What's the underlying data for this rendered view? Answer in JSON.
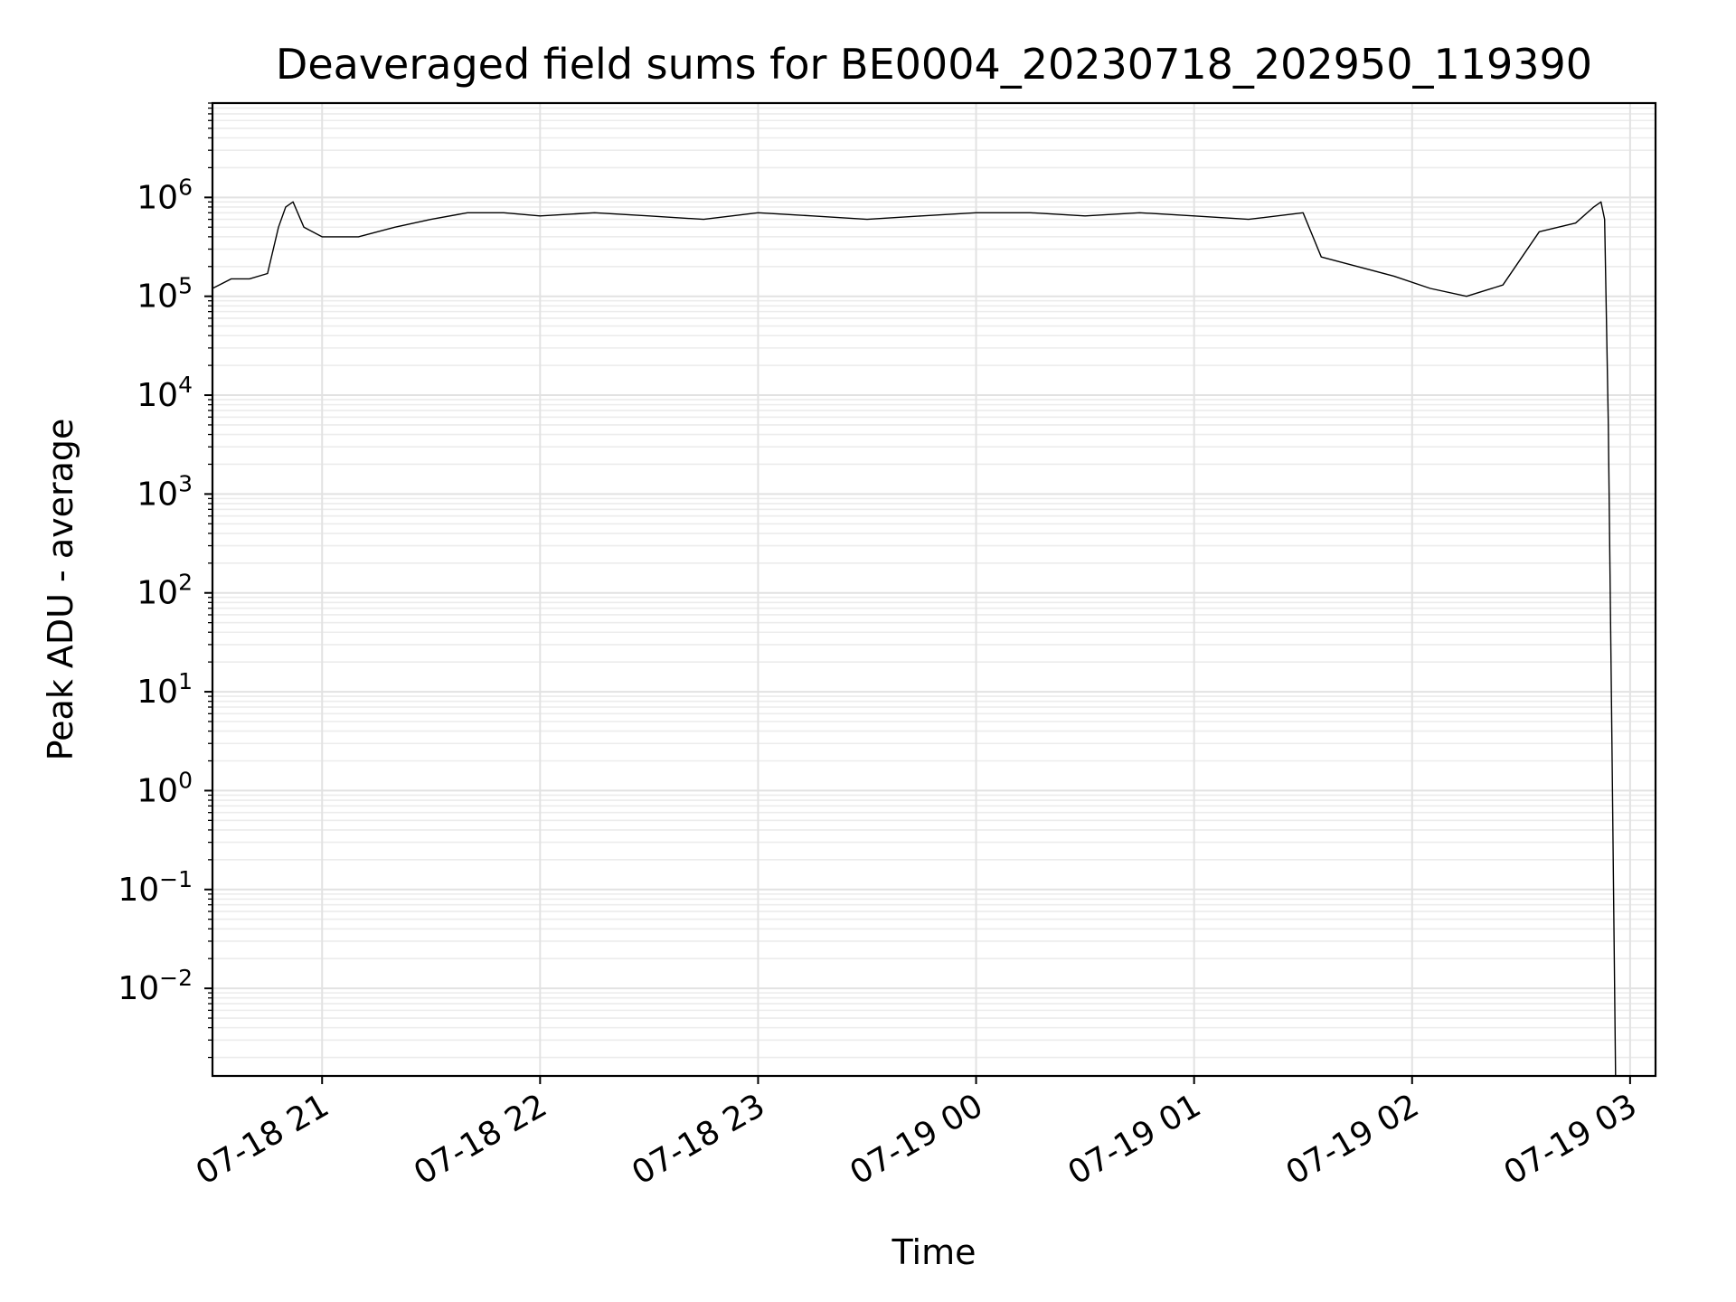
{
  "chart_data": {
    "type": "line",
    "title": "Deaveraged field sums for BE0004_20230718_202950_119390",
    "xlabel": "Time",
    "ylabel": "Peak ADU - average",
    "yscale": "log",
    "grid": true,
    "x_ticks": [
      "07-18 21",
      "07-18 22",
      "07-18 23",
      "07-19 00",
      "07-19 01",
      "07-19 02",
      "07-19 03"
    ],
    "y_ticks": [
      {
        "base": "10",
        "exp": "6",
        "value": 1000000
      },
      {
        "base": "10",
        "exp": "5",
        "value": 100000
      },
      {
        "base": "10",
        "exp": "4",
        "value": 10000
      },
      {
        "base": "10",
        "exp": "3",
        "value": 1000
      },
      {
        "base": "10",
        "exp": "2",
        "value": 100
      },
      {
        "base": "10",
        "exp": "1",
        "value": 10
      },
      {
        "base": "10",
        "exp": "0",
        "value": 1
      },
      {
        "base": "10",
        "exp": "−1",
        "value": 0.1
      },
      {
        "base": "10",
        "exp": "−2",
        "value": 0.01
      }
    ],
    "xlim": [
      "2023-07-18 20:29:50",
      "2023-07-19 03:07:00"
    ],
    "ylim": [
      0.0013,
      9000000
    ],
    "series": [
      {
        "color": "#000000",
        "x": [
          "2023-07-18 20:29:50",
          "2023-07-18 20:35",
          "2023-07-18 20:40",
          "2023-07-18 20:45",
          "2023-07-18 20:48",
          "2023-07-18 20:50",
          "2023-07-18 20:52",
          "2023-07-18 20:55",
          "2023-07-18 21:00",
          "2023-07-18 21:10",
          "2023-07-18 21:20",
          "2023-07-18 21:30",
          "2023-07-18 21:40",
          "2023-07-18 21:50",
          "2023-07-18 22:00",
          "2023-07-18 22:15",
          "2023-07-18 22:30",
          "2023-07-18 22:45",
          "2023-07-18 23:00",
          "2023-07-18 23:15",
          "2023-07-18 23:30",
          "2023-07-18 23:45",
          "2023-07-19 00:00",
          "2023-07-19 00:15",
          "2023-07-19 00:30",
          "2023-07-19 00:45",
          "2023-07-19 01:00",
          "2023-07-19 01:15",
          "2023-07-19 01:30",
          "2023-07-19 01:35",
          "2023-07-19 01:45",
          "2023-07-19 01:55",
          "2023-07-19 02:05",
          "2023-07-19 02:15",
          "2023-07-19 02:25",
          "2023-07-19 02:35",
          "2023-07-19 02:45",
          "2023-07-19 02:50",
          "2023-07-19 02:52",
          "2023-07-19 02:53",
          "2023-07-19 02:54",
          "2023-07-19 02:55",
          "2023-07-19 02:56"
        ],
        "y": [
          120000,
          150000,
          150000,
          170000,
          500000,
          800000,
          900000,
          500000,
          400000,
          400000,
          500000,
          600000,
          700000,
          700000,
          650000,
          700000,
          650000,
          600000,
          700000,
          650000,
          600000,
          650000,
          700000,
          700000,
          650000,
          700000,
          650000,
          600000,
          700000,
          250000,
          200000,
          160000,
          120000,
          100000,
          130000,
          450000,
          550000,
          800000,
          900000,
          600000,
          5000,
          3,
          0.0013
        ]
      }
    ]
  }
}
